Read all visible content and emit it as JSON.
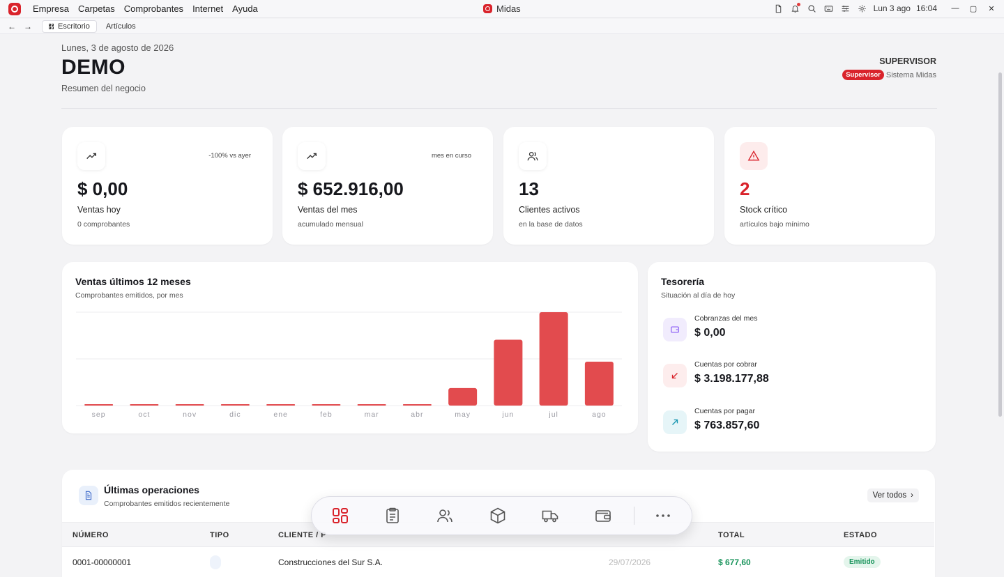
{
  "window": {
    "title": "Midas",
    "menu": [
      "Empresa",
      "Carpetas",
      "Comprobantes",
      "Internet",
      "Ayuda"
    ],
    "clock": "Lun 3 ago",
    "time": "16:04"
  },
  "tabs": [
    {
      "label": "Escritorio",
      "active": true
    },
    {
      "label": "Artículos",
      "active": false
    }
  ],
  "header": {
    "date": "Lunes, 3 de agosto de 2026",
    "company": "DEMO",
    "subtitle": "Resumen del negocio",
    "user_role": "SUPERVISOR",
    "role_badge": "Supervisor",
    "system": "Sistema Midas"
  },
  "kpis": [
    {
      "icon": "trend-up-icon",
      "tag": "-100% vs ayer",
      "value": "$ 0,00",
      "label": "Ventas hoy",
      "caption": "0 comprobantes"
    },
    {
      "icon": "trend-up-icon",
      "tag": "mes en curso",
      "value": "$ 652.916,00",
      "label": "Ventas del mes",
      "caption": "acumulado mensual"
    },
    {
      "icon": "users-icon",
      "tag": "",
      "value": "13",
      "label": "Clientes activos",
      "caption": "en la base de datos"
    },
    {
      "icon": "warning-icon",
      "tag": "",
      "value": "2",
      "label": "Stock crítico",
      "caption": "artículos bajo mínimo"
    }
  ],
  "sales_chart": {
    "title": "Ventas últimos 12 meses",
    "subtitle": "Comprobantes emitidos, por mes"
  },
  "chart_data": {
    "type": "bar",
    "title": "Ventas últimos 12 meses",
    "categories": [
      "sep",
      "oct",
      "nov",
      "dic",
      "ene",
      "feb",
      "mar",
      "abr",
      "may",
      "jun",
      "jul",
      "ago"
    ],
    "values": [
      0,
      0,
      0,
      0,
      0,
      0,
      0,
      0,
      260000,
      980000,
      1390000,
      652916
    ],
    "ylim": [
      0,
      1390000
    ],
    "grid": true,
    "color": "#e24b4e"
  },
  "treasury": {
    "title": "Tesorería",
    "subtitle": "Situación al día de hoy",
    "items": [
      {
        "label": "Cobranzas del mes",
        "value": "$ 0,00",
        "icon": "wallet-icon",
        "color": "#8b5cf6",
        "bg": "#f1ecfd"
      },
      {
        "label": "Cuentas por cobrar",
        "value": "$ 3.198.177,88",
        "icon": "arrow-down-left-icon",
        "color": "#d9232b",
        "bg": "#fdeded"
      },
      {
        "label": "Cuentas por pagar",
        "value": "$ 763.857,60",
        "icon": "arrow-up-right-icon",
        "color": "#1595b0",
        "bg": "#e6f5f8"
      }
    ]
  },
  "operations": {
    "title": "Últimas operaciones",
    "subtitle": "Comprobantes emitidos recientemente",
    "view_all": "Ver todos",
    "columns": [
      "NÚMERO",
      "TIPO",
      "CLIENTE / P",
      "TOTAL",
      "ESTADO"
    ],
    "rows": [
      {
        "numero": "0001-00000001",
        "cliente": "Construcciones del Sur S.A.",
        "fecha": "29/07/2026",
        "total": "$ 677,60",
        "estado": "Emitido"
      }
    ]
  },
  "dock": [
    "dashboard-icon",
    "clipboard-list-icon",
    "users-icon",
    "package-icon",
    "truck-icon",
    "wallet-icon",
    "more-icon"
  ],
  "colors": {
    "brand": "#d9232b",
    "accent_green": "#17935a"
  }
}
